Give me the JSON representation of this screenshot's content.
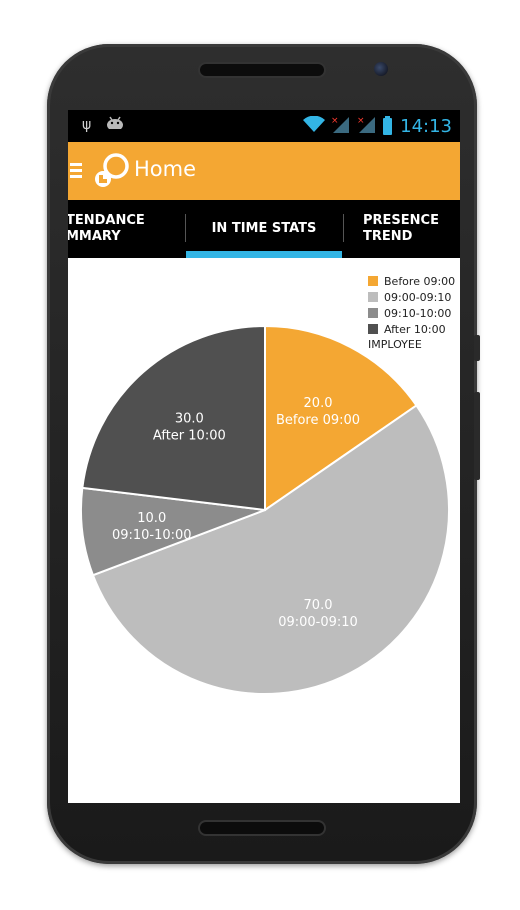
{
  "status_bar": {
    "left_icons": [
      "usb-icon",
      "android-icon"
    ],
    "right_icons": [
      "wifi-icon",
      "signal-no-service-icon",
      "signal-no-service-icon",
      "battery-charging-icon"
    ],
    "time": "14:13"
  },
  "app_bar": {
    "title": "Home"
  },
  "tabs": [
    {
      "line1": "TENDANCE",
      "line2": "MMARY"
    },
    {
      "line1": "IN TIME STATS",
      "line2": ""
    },
    {
      "line1": "PRESENCE",
      "line2": "TREND"
    }
  ],
  "colors": {
    "accent": "#f4a733",
    "tab_indicator": "#33b5e5",
    "status_time": "#33b5e5"
  },
  "chart_data": {
    "type": "pie",
    "description": "IMPLOYEE",
    "slices": [
      {
        "label": "Before 09:00",
        "value": 20.0,
        "value_text": "20.0",
        "color": "#f4a733"
      },
      {
        "label": "09:00-09:10",
        "value": 70.0,
        "value_text": "70.0",
        "color": "#bdbdbd"
      },
      {
        "label": "09:10-10:00",
        "value": 10.0,
        "value_text": "10.0",
        "color": "#8c8c8c"
      },
      {
        "label": "After 10:00",
        "value": 30.0,
        "value_text": "30.0",
        "color": "#505050"
      }
    ],
    "legend": {
      "placement": "top-right",
      "entries": [
        "Before 09:00",
        "09:00-09:10",
        "09:10-10:00",
        "After 10:00"
      ]
    }
  }
}
